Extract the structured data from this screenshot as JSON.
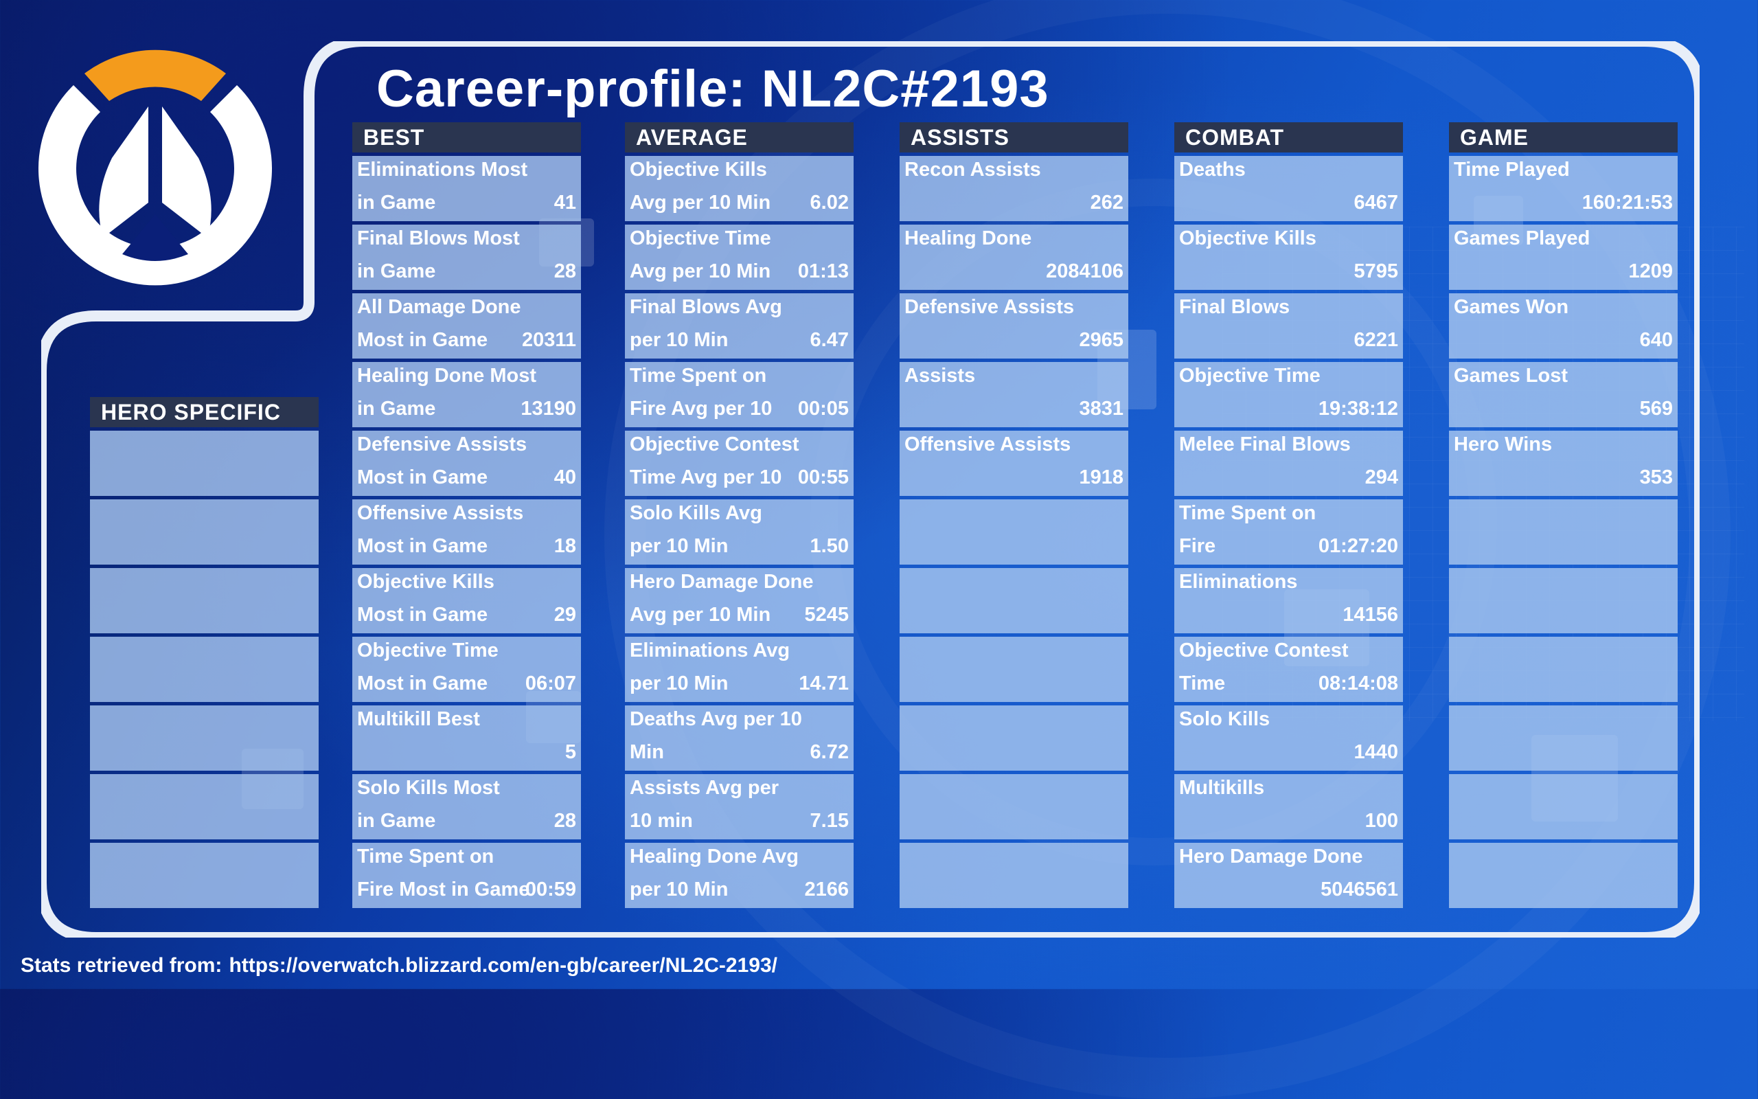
{
  "title": "Career-profile: NL2C#2193",
  "accent_colors": {
    "logo_orange": "#f49b1c",
    "frame": "#ffffff",
    "header_bg": "#2a3550",
    "cell_bg": "#aac8f0"
  },
  "logo": {
    "icon": "overwatch-logo-icon"
  },
  "hero_specific": {
    "header": "HERO SPECIFIC",
    "cells": [
      "",
      "",
      "",
      "",
      "",
      "",
      ""
    ]
  },
  "columns": {
    "best": {
      "header": "BEST",
      "cells": [
        {
          "line1": "Eliminations Most",
          "line2": "in Game",
          "value": "41"
        },
        {
          "line1": "Final Blows Most",
          "line2": "in Game",
          "value": "28"
        },
        {
          "line1": "All Damage Done",
          "line2": "Most in Game",
          "value": "20311"
        },
        {
          "line1": "Healing Done Most",
          "line2": "in Game",
          "value": "13190"
        },
        {
          "line1": "Defensive Assists",
          "line2": "Most in Game",
          "value": "40"
        },
        {
          "line1": "Offensive Assists",
          "line2": "Most in Game",
          "value": "18"
        },
        {
          "line1": "Objective Kills",
          "line2": "Most in Game",
          "value": "29"
        },
        {
          "line1": "Objective Time",
          "line2": "Most in Game",
          "value": "06:07"
        },
        {
          "line1": "Multikill Best",
          "line2": "",
          "value": "5"
        },
        {
          "line1": "Solo Kills Most",
          "line2": "in Game",
          "value": "28"
        },
        {
          "line1": "Time Spent on",
          "line2": "Fire Most in Game",
          "value": "00:59"
        }
      ]
    },
    "average": {
      "header": "AVERAGE",
      "cells": [
        {
          "line1": "Objective Kills",
          "line2": "Avg per 10 Min",
          "value": "6.02"
        },
        {
          "line1": "Objective Time",
          "line2": "Avg per 10 Min",
          "value": "01:13"
        },
        {
          "line1": "Final Blows Avg",
          "line2": "per 10 Min",
          "value": "6.47"
        },
        {
          "line1": "Time Spent on",
          "line2": "Fire Avg per 10",
          "value": "00:05"
        },
        {
          "line1": "Objective Contest",
          "line2": "Time Avg per 10",
          "value": "00:55"
        },
        {
          "line1": "Solo Kills Avg",
          "line2": "per 10 Min",
          "value": "1.50"
        },
        {
          "line1": "Hero Damage Done",
          "line2": "Avg per 10 Min",
          "value": "5245"
        },
        {
          "line1": "Eliminations Avg",
          "line2": "per 10 Min",
          "value": "14.71"
        },
        {
          "line1": "Deaths Avg per 10",
          "line2": "Min",
          "value": "6.72"
        },
        {
          "line1": "Assists Avg per",
          "line2": "10 min",
          "value": "7.15"
        },
        {
          "line1": "Healing Done Avg",
          "line2": "per 10 Min",
          "value": "2166"
        }
      ]
    },
    "assists": {
      "header": "ASSISTS",
      "cells": [
        {
          "line1": "Recon Assists",
          "line2": "",
          "value": "262"
        },
        {
          "line1": "Healing Done",
          "line2": "",
          "value": "2084106"
        },
        {
          "line1": "Defensive Assists",
          "line2": "",
          "value": "2965"
        },
        {
          "line1": "Assists",
          "line2": "",
          "value": "3831"
        },
        {
          "line1": "Offensive Assists",
          "line2": "",
          "value": "1918"
        },
        {
          "line1": "",
          "line2": "",
          "value": ""
        },
        {
          "line1": "",
          "line2": "",
          "value": ""
        },
        {
          "line1": "",
          "line2": "",
          "value": ""
        },
        {
          "line1": "",
          "line2": "",
          "value": ""
        },
        {
          "line1": "",
          "line2": "",
          "value": ""
        },
        {
          "line1": "",
          "line2": "",
          "value": ""
        }
      ]
    },
    "combat": {
      "header": "COMBAT",
      "cells": [
        {
          "line1": "Deaths",
          "line2": "",
          "value": "6467"
        },
        {
          "line1": "Objective Kills",
          "line2": "",
          "value": "5795"
        },
        {
          "line1": "Final Blows",
          "line2": "",
          "value": "6221"
        },
        {
          "line1": "Objective Time",
          "line2": "",
          "value": "19:38:12"
        },
        {
          "line1": "Melee Final Blows",
          "line2": "",
          "value": "294"
        },
        {
          "line1": "Time Spent on",
          "line2": "Fire",
          "value": "01:27:20"
        },
        {
          "line1": "Eliminations",
          "line2": "",
          "value": "14156"
        },
        {
          "line1": "Objective Contest",
          "line2": "Time",
          "value": "08:14:08"
        },
        {
          "line1": "Solo Kills",
          "line2": "",
          "value": "1440"
        },
        {
          "line1": "Multikills",
          "line2": "",
          "value": "100"
        },
        {
          "line1": "Hero Damage Done",
          "line2": "",
          "value": "5046561"
        }
      ]
    },
    "game": {
      "header": "GAME",
      "cells": [
        {
          "line1": "Time Played",
          "line2": "",
          "value": "160:21:53"
        },
        {
          "line1": "Games Played",
          "line2": "",
          "value": "1209"
        },
        {
          "line1": "Games Won",
          "line2": "",
          "value": "640"
        },
        {
          "line1": "Games Lost",
          "line2": "",
          "value": "569"
        },
        {
          "line1": "Hero Wins",
          "line2": "",
          "value": "353"
        },
        {
          "line1": "",
          "line2": "",
          "value": ""
        },
        {
          "line1": "",
          "line2": "",
          "value": ""
        },
        {
          "line1": "",
          "line2": "",
          "value": ""
        },
        {
          "line1": "",
          "line2": "",
          "value": ""
        },
        {
          "line1": "",
          "line2": "",
          "value": ""
        },
        {
          "line1": "",
          "line2": "",
          "value": ""
        }
      ]
    }
  },
  "footer": {
    "label": "Stats retrieved from:",
    "url": "https://overwatch.blizzard.com/en-gb/career/NL2C-2193/"
  }
}
